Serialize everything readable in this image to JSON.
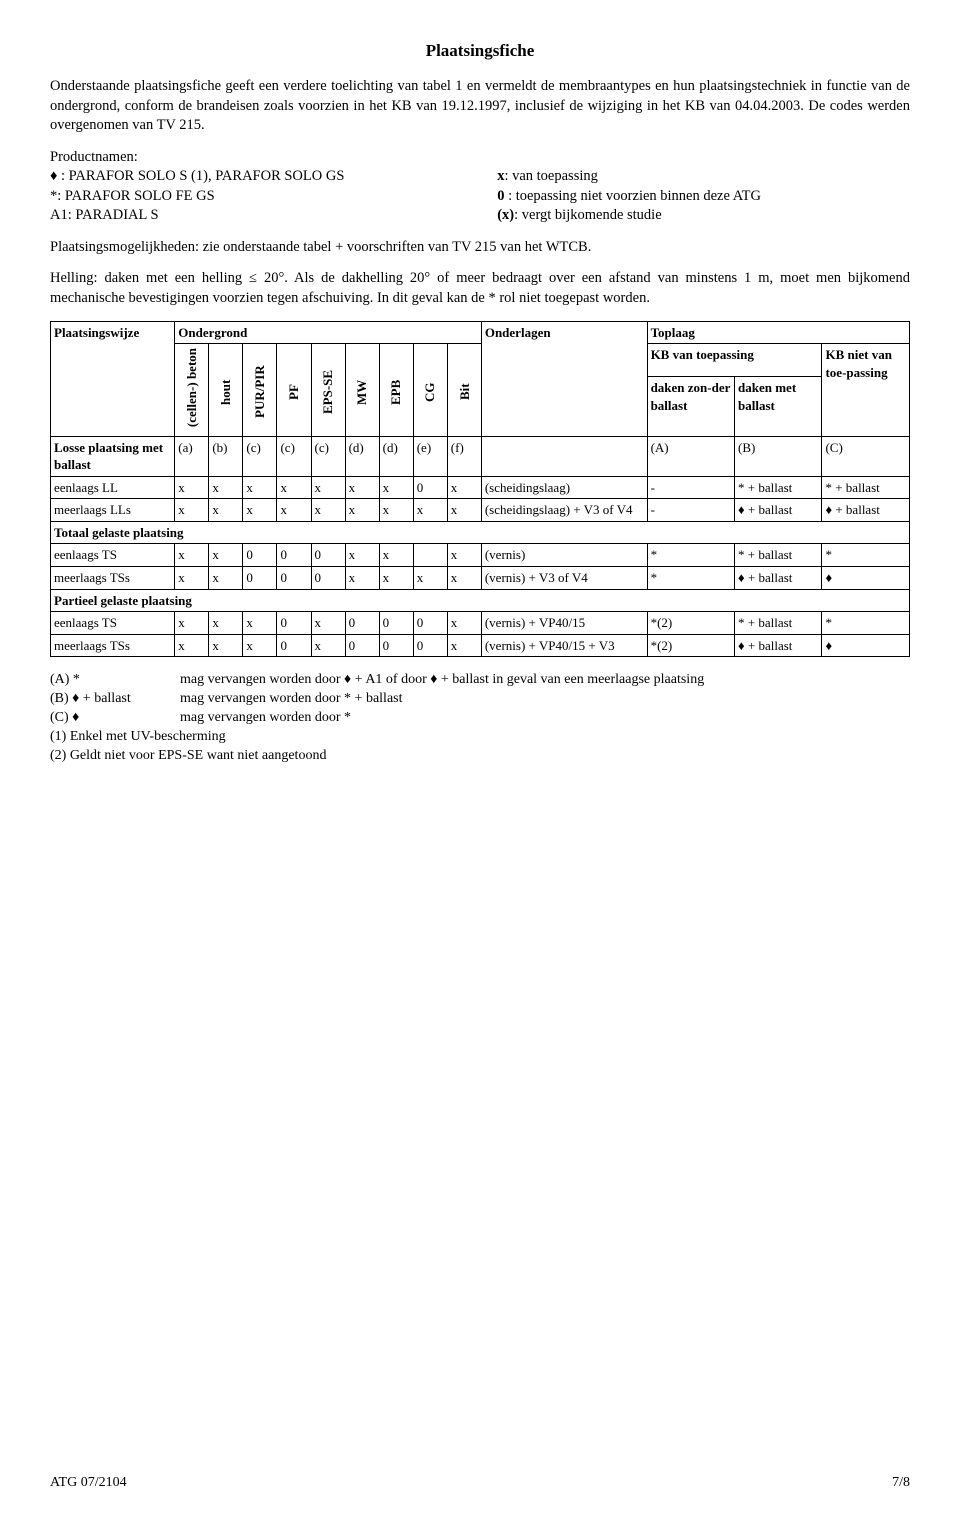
{
  "title": "Plaatsingsfiche",
  "intro": "Onderstaande plaatsingsfiche geeft een verdere toelichting van tabel 1 en vermeldt de membraantypes en hun plaatsingstechniek in functie van de ondergrond, conform de brandeisen zoals voorzien in het KB van 19.12.1997, inclusief de wijziging in het KB van 04.04.2003. De codes werden overgenomen van TV 215.",
  "productnamen": {
    "heading": "Productnamen:",
    "left": [
      "♦ : PARAFOR SOLO S (1), PARAFOR SOLO GS",
      "*: PARAFOR SOLO FE GS",
      "A1: PARADIAL S"
    ],
    "right_labels": [
      "x",
      "0",
      "(x)"
    ],
    "right_texts": [
      ": van toepassing",
      " : toepassing niet voorzien binnen deze ATG",
      ": vergt bijkomende studie"
    ]
  },
  "para_mogelijkheden": "Plaatsingsmogelijkheden: zie onderstaande tabel + voorschriften van TV 215 van het WTCB.",
  "para_helling": "Helling: daken met een helling ≤ 20°. Als de dakhelling 20° of meer bedraagt over een afstand van minstens 1 m, moet men bijkomend mechanische bevestigingen voorzien tegen afschuiving. In dit geval kan de * rol niet toegepast worden.",
  "table": {
    "header_top": {
      "plaatsing": "Plaatsingswijze",
      "ondergrond": "Ondergrond",
      "onderlagen": "Onderlagen",
      "toplaag": "Toplaag"
    },
    "header_toplaag": {
      "kb_toepassing": "KB van toepassing",
      "kb_niet": "KB niet van toe-passing",
      "daken_zonder": "daken zon-der ballast",
      "daken_met": "daken met ballast"
    },
    "ondergrond_cols": [
      "(cellen-) beton",
      "hout",
      "PUR/PIR",
      "PF",
      "EPS-SE",
      "MW",
      "EPB",
      "CG",
      "Bit"
    ],
    "sections": [
      {
        "preRow": {
          "label": "Losse plaatsing met ballast",
          "cells": [
            "(a)",
            "(b)",
            "(c)",
            "(c)",
            "(c)",
            "(d)",
            "(d)",
            "(e)",
            "(f)",
            "",
            "(A)",
            "(B)",
            "(C)"
          ]
        },
        "rows": [
          {
            "label": "eenlaags LL",
            "cells": [
              "x",
              "x",
              "x",
              "x",
              "x",
              "x",
              "x",
              "0",
              "x",
              "(scheidingslaag)",
              "-",
              "* + ballast",
              "* + ballast"
            ]
          },
          {
            "label": "meerlaags LLs",
            "cells": [
              "x",
              "x",
              "x",
              "x",
              "x",
              "x",
              "x",
              "x",
              "x",
              "(scheidingslaag) + V3 of V4",
              "-",
              "♦ + ballast",
              "♦ + ballast"
            ]
          }
        ]
      },
      {
        "heading": "Totaal gelaste plaatsing",
        "rows": [
          {
            "label": "eenlaags TS",
            "cells": [
              "x",
              "x",
              "0",
              "0",
              "0",
              "x",
              "x",
              "",
              "x",
              "(vernis)",
              "*",
              "* + ballast",
              "*"
            ]
          },
          {
            "label": "meerlaags TSs",
            "cells": [
              "x",
              "x",
              "0",
              "0",
              "0",
              "x",
              "x",
              "x",
              "x",
              "(vernis) + V3 of V4",
              "*",
              "♦ + ballast",
              "♦"
            ]
          }
        ]
      },
      {
        "heading": "Partieel gelaste plaatsing",
        "rows": [
          {
            "label": "eenlaags TS",
            "cells": [
              "x",
              "x",
              "x",
              "0",
              "x",
              "0",
              "0",
              "0",
              "x",
              "(vernis) + VP40/15",
              "*(2)",
              "* + ballast",
              "*"
            ]
          },
          {
            "label": "meerlaags TSs",
            "cells": [
              "x",
              "x",
              "x",
              "0",
              "x",
              "0",
              "0",
              "0",
              "x",
              "(vernis) + VP40/15 + V3",
              "*(2)",
              "♦ + ballast",
              "♦"
            ]
          }
        ]
      }
    ]
  },
  "notes": {
    "lettered": [
      {
        "label": "(A) *",
        "text": "mag vervangen worden door ♦ + A1 of door ♦ + ballast in geval van een meerlaagse plaatsing"
      },
      {
        "label": "(B) ♦ + ballast",
        "text": "mag vervangen worden door * + ballast"
      },
      {
        "label": "(C) ♦",
        "text": "mag vervangen worden door *"
      }
    ],
    "numbered": [
      "(1) Enkel met UV-bescherming",
      "(2) Geldt niet voor EPS-SE want niet aangetoond"
    ]
  },
  "footer": {
    "left": "ATG 07/2104",
    "right": "7/8"
  },
  "style": {
    "col_widths": {
      "label": "13.5%",
      "ondergrond": "3.7%",
      "onderlagen": "18%",
      "toplaag_sub": "9.5%",
      "kb_niet": "9.5%"
    }
  }
}
